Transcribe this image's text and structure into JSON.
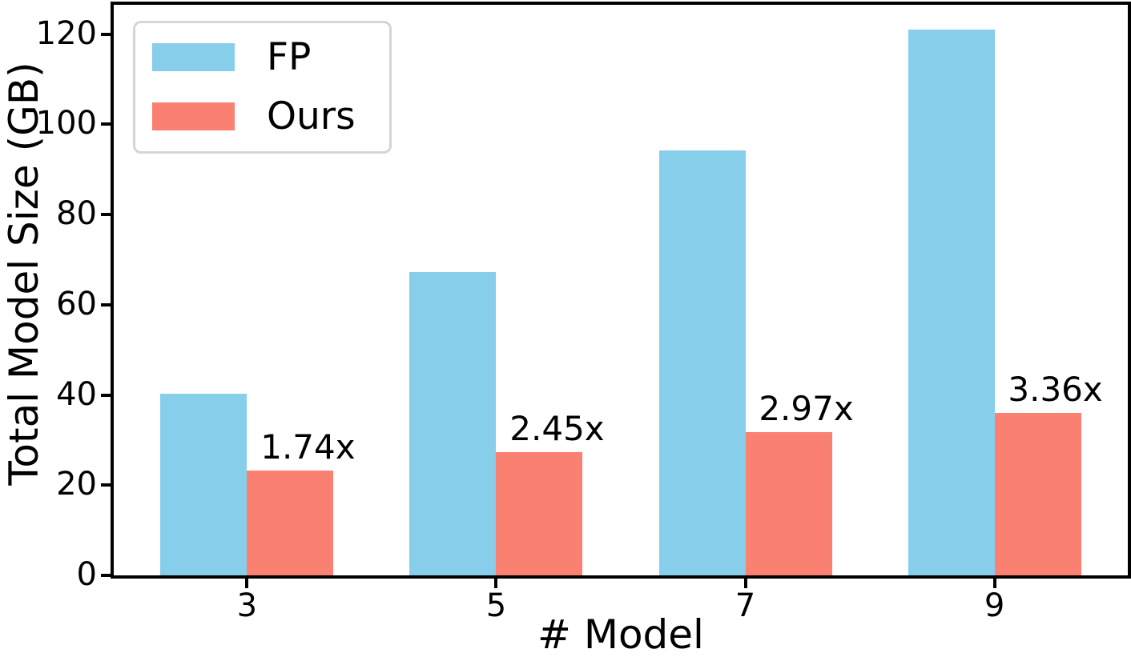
{
  "chart_data": {
    "type": "bar",
    "title": "",
    "xlabel": "# Model",
    "ylabel": "Total Model Size (GB)",
    "categories": [
      "3",
      "5",
      "7",
      "9"
    ],
    "series": [
      {
        "name": "FP",
        "color": "#87CEEB",
        "values": [
          40.35,
          67.25,
          94.15,
          121.05
        ]
      },
      {
        "name": "Ours",
        "color": "#FA8072",
        "values": [
          23.2,
          27.4,
          31.7,
          36.0
        ],
        "bar_labels": [
          "1.74x",
          "2.45x",
          "2.97x",
          "3.36x"
        ]
      }
    ],
    "yticks": [
      0,
      20,
      40,
      60,
      80,
      100,
      120
    ],
    "ylim": [
      0,
      126.5
    ],
    "legend": {
      "position": "upper left",
      "entries": [
        "FP",
        "Ours"
      ]
    },
    "grid": false,
    "axis_color": "#000000",
    "background": "#ffffff"
  }
}
